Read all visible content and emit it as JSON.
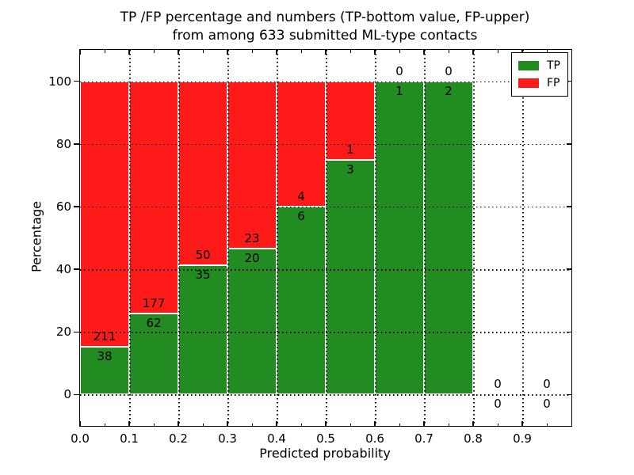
{
  "chart_data": {
    "type": "bar",
    "stacked": true,
    "title_line1": "TP /FP percentage and numbers (TP-bottom value, FP-upper)",
    "title_line2": "from among 633 submitted ML-type contacts",
    "xlabel": "Predicted probability",
    "ylabel": "Percentage",
    "xlim": [
      0.0,
      1.0
    ],
    "ylim": [
      -10,
      110
    ],
    "x_tick_labels": [
      "0.0",
      "0.1",
      "0.2",
      "0.3",
      "0.4",
      "0.5",
      "0.6",
      "0.7",
      "0.8",
      "0.9"
    ],
    "x_tick_values": [
      0.0,
      0.1,
      0.2,
      0.3,
      0.4,
      0.5,
      0.6,
      0.7,
      0.8,
      0.9
    ],
    "x_minor_tick_values": [
      0.05,
      0.15,
      0.25,
      0.35,
      0.45,
      0.55,
      0.65,
      0.75,
      0.85,
      0.95
    ],
    "y_tick_values": [
      0,
      20,
      40,
      60,
      80,
      100
    ],
    "bin_starts": [
      0.0,
      0.1,
      0.2,
      0.3,
      0.4,
      0.5,
      0.6,
      0.7,
      0.8,
      0.9
    ],
    "bin_width": 0.1,
    "series": [
      {
        "name": "TP",
        "color": "#228b22",
        "counts": [
          38,
          62,
          35,
          20,
          6,
          3,
          1,
          2,
          0,
          0
        ]
      },
      {
        "name": "FP",
        "color": "#ff1a1a",
        "counts": [
          211,
          177,
          50,
          23,
          4,
          1,
          0,
          0,
          0,
          0
        ]
      }
    ],
    "tp_percent_by_bin": [
      15.3,
      25.9,
      41.2,
      46.5,
      60.0,
      75.0,
      100.0,
      100.0,
      0.0,
      0.0
    ],
    "total_contacts": 633,
    "grid": "dotted",
    "legend_position": "upper right"
  }
}
